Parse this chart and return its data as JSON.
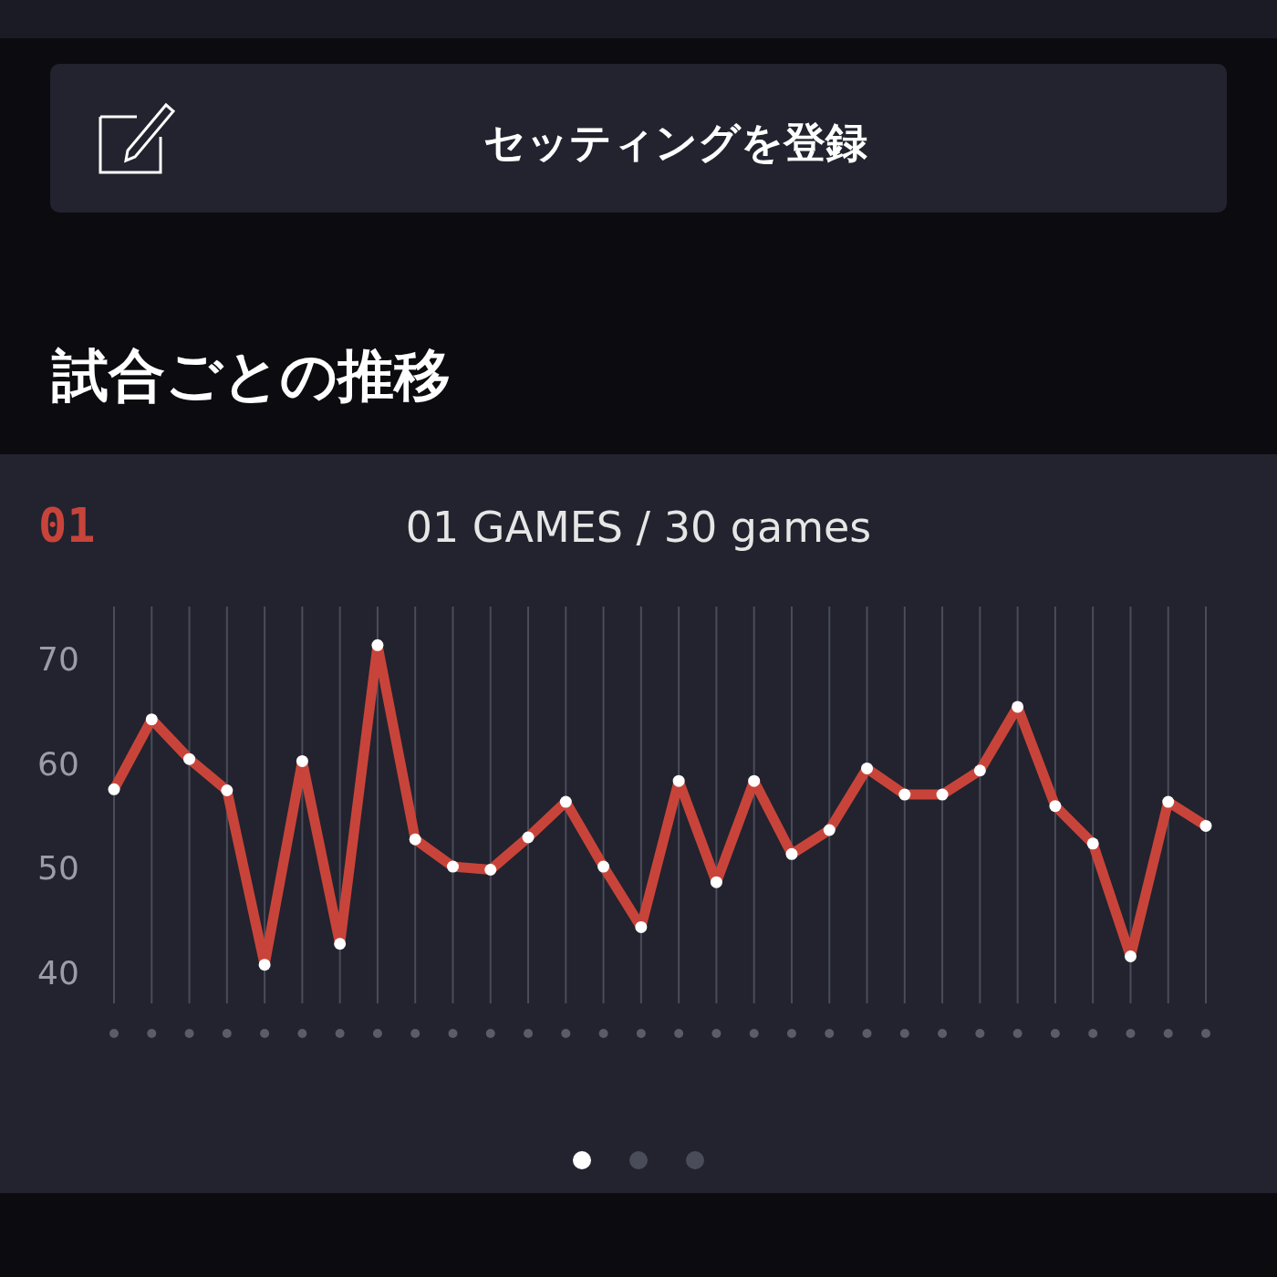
{
  "chart_data": {
    "type": "line",
    "title": "試合ごとの推移",
    "subtitle": "01 GAMES / 30 games",
    "annotations": [
      "セッティングを登録",
      "01"
    ],
    "categories": [
      null,
      null,
      null,
      null,
      null,
      null,
      null,
      null,
      null,
      null,
      null,
      null,
      null,
      null,
      null,
      null,
      null,
      null,
      null,
      null,
      null,
      null,
      null,
      null,
      null,
      null,
      null,
      null,
      null,
      null
    ],
    "series": [
      {
        "color": "#c8443a",
        "values": [
          57.5,
          64.2,
          60.4,
          57.4,
          40.7,
          60.2,
          42.7,
          71.3,
          52.7,
          50.1,
          49.8,
          52.9,
          56.3,
          50.1,
          44.3,
          58.3,
          48.6,
          58.3,
          51.3,
          53.6,
          59.5,
          57.0,
          57.0,
          59.3,
          65.4,
          55.9,
          52.3,
          41.5,
          56.3,
          54.0
        ]
      }
    ],
    "ylim": [
      37,
      75
    ],
    "yticks": [
      40,
      50,
      60,
      70
    ],
    "grid": "x",
    "marker": "circle"
  }
}
